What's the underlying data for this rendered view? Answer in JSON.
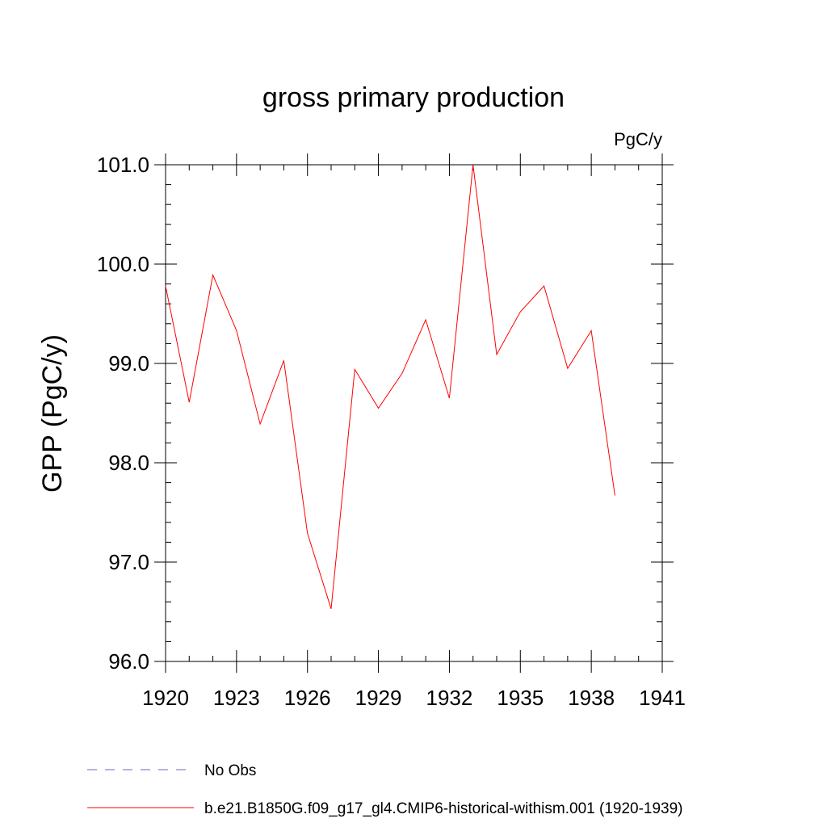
{
  "chart_data": {
    "type": "line",
    "title": "gross primary production",
    "units": "PgC/y",
    "ylabel": "GPP  (PgC/y)",
    "xlabel": "",
    "xlim": [
      1920,
      1941
    ],
    "ylim": [
      96.0,
      101.0
    ],
    "x_ticks": [
      1920,
      1923,
      1926,
      1929,
      1932,
      1935,
      1938,
      1941
    ],
    "x_tick_labels": [
      "1920",
      "1923",
      "1926",
      "1929",
      "1932",
      "1935",
      "1938",
      "1941"
    ],
    "y_ticks": [
      96,
      97,
      98,
      99,
      100,
      101
    ],
    "y_tick_labels": [
      "96.0",
      "97.0",
      "98.0",
      "99.0",
      "100.0",
      "101.0"
    ],
    "grid": false,
    "legend_position": "bottom-left",
    "series": [
      {
        "name": "b.e21.B1850G.f09_g17_gl4.CMIP6-historical-withism.001 (1920-1939)",
        "color": "#ff0000",
        "line_style": "solid",
        "x": [
          1920,
          1921,
          1922,
          1923,
          1924,
          1925,
          1926,
          1927,
          1928,
          1929,
          1930,
          1931,
          1932,
          1933,
          1934,
          1935,
          1936,
          1937,
          1938,
          1939
        ],
        "y": [
          99.78,
          98.61,
          99.89,
          99.33,
          98.39,
          99.03,
          97.29,
          96.53,
          98.94,
          98.55,
          98.9,
          99.44,
          98.65,
          101.0,
          99.09,
          99.52,
          99.78,
          98.95,
          99.33,
          97.67
        ]
      }
    ],
    "legend": [
      {
        "label": "No Obs",
        "color": "#6a6aba",
        "line_style": "dashed"
      },
      {
        "label": "b.e21.B1850G.f09_g17_gl4.CMIP6-historical-withism.001 (1920-1939)",
        "color": "#ff0000",
        "line_style": "solid"
      }
    ]
  }
}
